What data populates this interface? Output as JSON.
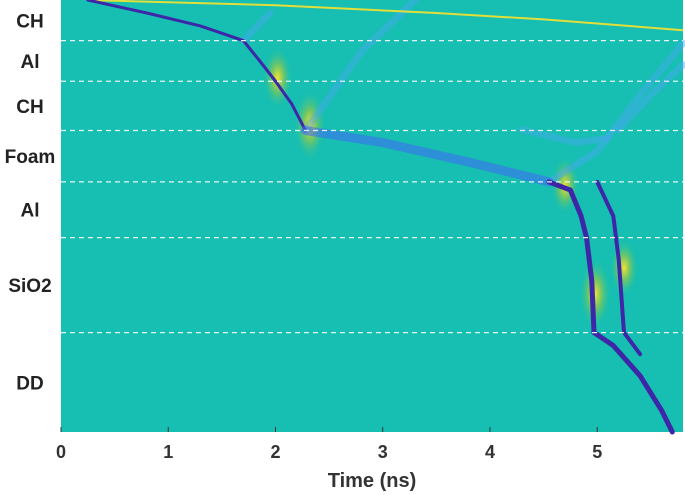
{
  "chart_data": {
    "type": "heatmap",
    "title": "",
    "xlabel": "Time (ns)",
    "ylabel": "",
    "xlim": [
      0,
      5.8
    ],
    "x_ticks": [
      0,
      1,
      2,
      3,
      4,
      5
    ],
    "x_tick_labels": [
      "0",
      "1",
      "2",
      "3",
      "4",
      "5"
    ],
    "layers": [
      {
        "name": "CH",
        "y_top": 0.0,
        "y_bottom": 0.094
      },
      {
        "name": "Al",
        "y_top": 0.094,
        "y_bottom": 0.188
      },
      {
        "name": "CH",
        "y_top": 0.188,
        "y_bottom": 0.302
      },
      {
        "name": "Foam",
        "y_top": 0.302,
        "y_bottom": 0.421
      },
      {
        "name": "Al",
        "y_top": 0.421,
        "y_bottom": 0.55
      },
      {
        "name": "SiO2",
        "y_top": 0.55,
        "y_bottom": 0.77
      },
      {
        "name": "DD",
        "y_top": 0.77,
        "y_bottom": 1.0
      }
    ],
    "interfaces_depth": [
      0.094,
      0.188,
      0.302,
      0.421,
      0.55,
      0.77
    ],
    "colors": {
      "background": "#16bfb1",
      "shock_dark": "#3e26a8",
      "shock_mid": "#3d6ff0",
      "light_blue": "#49a6f2",
      "yellow": "#f9e22e",
      "green": "#8cc84f",
      "interface_line": "#e6f5f3"
    },
    "features": {
      "main_shock": [
        [
          0.25,
          0.0
        ],
        [
          0.8,
          0.03
        ],
        [
          1.3,
          0.06
        ],
        [
          1.7,
          0.094
        ],
        [
          1.85,
          0.14
        ],
        [
          2.0,
          0.188
        ],
        [
          2.15,
          0.24
        ],
        [
          2.28,
          0.302
        ]
      ],
      "foam_shock": [
        [
          2.28,
          0.302
        ],
        [
          3.0,
          0.33
        ],
        [
          3.8,
          0.375
        ],
        [
          4.55,
          0.421
        ]
      ],
      "shock_inner_al": [
        [
          4.55,
          0.421
        ],
        [
          4.75,
          0.44
        ],
        [
          4.85,
          0.5
        ],
        [
          4.9,
          0.55
        ],
        [
          4.95,
          0.65
        ],
        [
          4.97,
          0.77
        ]
      ],
      "shock_dd": [
        [
          4.97,
          0.77
        ],
        [
          5.15,
          0.8
        ],
        [
          5.4,
          0.87
        ],
        [
          5.6,
          0.95
        ],
        [
          5.7,
          1.0
        ]
      ],
      "second_shock": [
        [
          5.0,
          0.421
        ],
        [
          5.15,
          0.5
        ],
        [
          5.2,
          0.6
        ],
        [
          5.25,
          0.77
        ],
        [
          5.4,
          0.82
        ]
      ],
      "ablation_front": [
        [
          0.25,
          0.0
        ],
        [
          2.0,
          0.012
        ],
        [
          3.5,
          0.03
        ],
        [
          4.5,
          0.045
        ],
        [
          5.8,
          0.07
        ]
      ],
      "reverberation_waves": [
        [
          [
            1.7,
            0.094
          ],
          [
            1.95,
            0.03
          ]
        ],
        [
          [
            2.28,
            0.302
          ],
          [
            2.8,
            0.12
          ],
          [
            3.3,
            0.0
          ]
        ],
        [
          [
            4.55,
            0.421
          ],
          [
            5.0,
            0.35
          ],
          [
            5.4,
            0.22
          ],
          [
            5.8,
            0.1
          ]
        ],
        [
          [
            4.3,
            0.3
          ],
          [
            4.8,
            0.33
          ],
          [
            5.1,
            0.32
          ]
        ],
        [
          [
            5.2,
            0.3
          ],
          [
            5.5,
            0.22
          ],
          [
            5.8,
            0.15
          ]
        ]
      ],
      "bright_spots": [
        {
          "t": 2.32,
          "depth": 0.29,
          "level": 1.0
        },
        {
          "t": 2.02,
          "depth": 0.18,
          "level": 0.8
        },
        {
          "t": 4.98,
          "depth": 0.68,
          "level": 1.0
        },
        {
          "t": 5.25,
          "depth": 0.62,
          "level": 0.7
        },
        {
          "t": 4.7,
          "depth": 0.43,
          "level": 0.7
        }
      ]
    }
  }
}
